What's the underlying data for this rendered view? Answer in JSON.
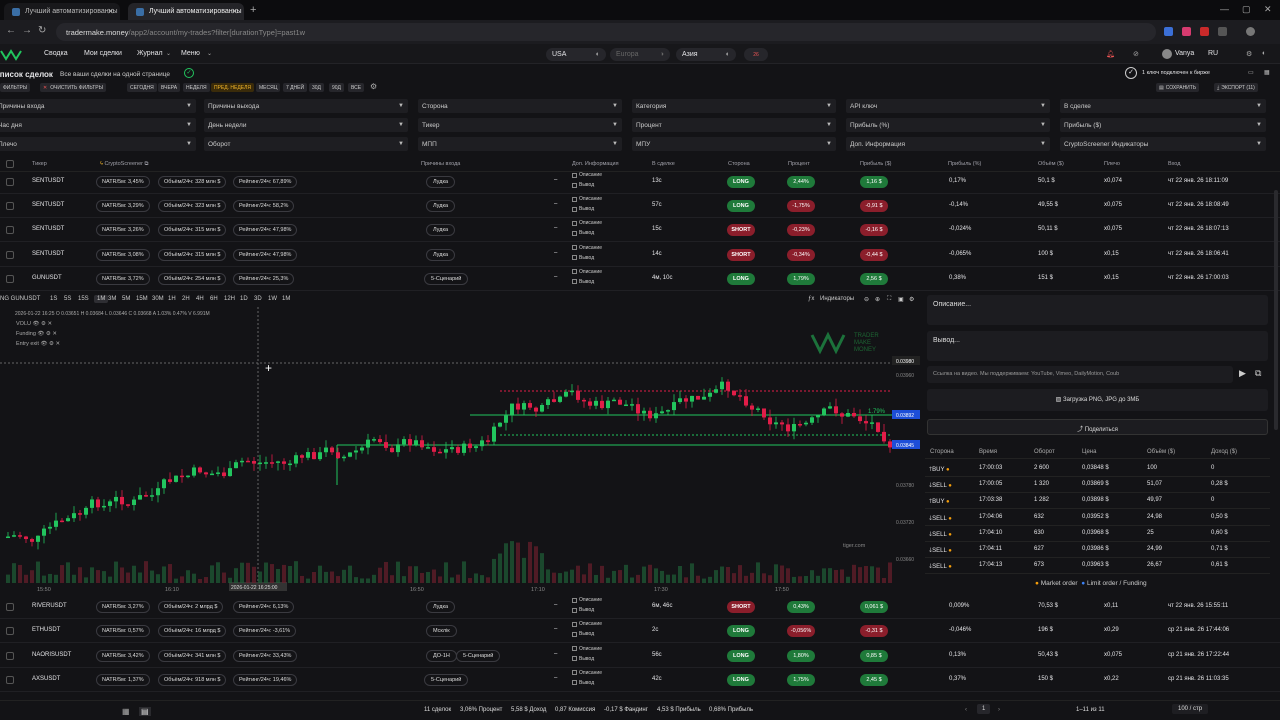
{
  "browser": {
    "tabs": [
      {
        "title": "Лучший автоматизированны"
      },
      {
        "title": "Лучший автоматизированны"
      }
    ],
    "url_host": "tradermake.money",
    "url_path": "/app2/account/my-trades?filter[durationType]=past1w"
  },
  "topnav": {
    "items": [
      "Сводка",
      "Мои сделки",
      "Журнал",
      "Меню"
    ],
    "markets": [
      "USA",
      "Europa",
      "Азия"
    ],
    "badge": "26",
    "user": "Vanya",
    "lang": "RU"
  },
  "page": {
    "title": "Список сделок",
    "subtitle": "Все ваши сделки на одной странице",
    "api_status": "1 ключ подключен к бирже",
    "save_label": "СОХРАНИТЬ",
    "export_label": "ЭКСПОРТ (11)"
  },
  "filters": {
    "buttons": [
      "ФИЛЬТРЫ",
      "ОЧИСТИТЬ ФИЛЬТРЫ"
    ],
    "periods": [
      "СЕГОДНЯ",
      "ВЧЕРА",
      "НЕДЕЛЯ",
      "ПРЕД. НЕДЕЛЯ",
      "МЕСЯЦ",
      "7 ДНЕЙ",
      "30Д",
      "90Д",
      "ВСЕ"
    ],
    "active_period": "ПРЕД. НЕДЕЛЯ"
  },
  "dropdowns": [
    [
      "Причины входа",
      "Причины выхода",
      "Сторона",
      "Категория",
      "API ключ",
      "В сделке"
    ],
    [
      "Час дня",
      "День недели",
      "Тикер",
      "Процент",
      "Прибыль (%)",
      "Прибыль ($)"
    ],
    [
      "Плечо",
      "Оборот",
      "МПП",
      "МПУ",
      "Доп. Информация",
      "CryptoScreener Индикаторы"
    ]
  ],
  "columns": [
    "Тикер",
    "CryptoScreener",
    "Причины входа",
    "Доп. Информация",
    "В сделке",
    "Сторона",
    "Процент",
    "Прибыль ($)",
    "Прибыль (%)",
    "Объём ($)",
    "Плечо",
    "Вход"
  ],
  "desc_labels": {
    "desc": "Описание",
    "exit": "Вывод"
  },
  "trades_top": [
    {
      "ticker": "SENTUSDT",
      "natr": "NATR/5м: 3,45%",
      "vol": "Объём/24ч: 328 млн $",
      "rank": "Рейтинг/24ч: 67,89%",
      "reason": "Лудка",
      "dash": "–",
      "dur": "13с",
      "side": "LONG",
      "pct": "2,44%",
      "profit": "1,16 $",
      "profit_pct": "0,17%",
      "volume": "50,1 $",
      "lev": "x0,074",
      "entry": "чт 22 янв. 26 18:11:09"
    },
    {
      "ticker": "SENTUSDT",
      "natr": "NATR/5м: 3,29%",
      "vol": "Объём/24ч: 323 млн $",
      "rank": "Рейтинг/24ч: 58,2%",
      "reason": "Лудка",
      "dash": "–",
      "dur": "57с",
      "side": "LONG",
      "pct": "-1,75%",
      "profit": "-0,91 $",
      "profit_pct": "-0,14%",
      "volume": "49,55 $",
      "lev": "x0,075",
      "entry": "чт 22 янв. 26 18:08:49"
    },
    {
      "ticker": "SENTUSDT",
      "natr": "NATR/5м: 3,26%",
      "vol": "Объём/24ч: 315 млн $",
      "rank": "Рейтинг/24ч: 47,98%",
      "reason": "Лудка",
      "dash": "–",
      "dur": "15с",
      "side": "SHORT",
      "pct": "-0,23%",
      "profit": "-0,16 $",
      "profit_pct": "-0,024%",
      "volume": "50,11 $",
      "lev": "x0,075",
      "entry": "чт 22 янв. 26 18:07:13"
    },
    {
      "ticker": "SENTUSDT",
      "natr": "NATR/5м: 3,08%",
      "vol": "Объём/24ч: 315 млн $",
      "rank": "Рейтинг/24ч: 47,98%",
      "reason": "Лудка",
      "dash": "–",
      "dur": "14с",
      "side": "SHORT",
      "pct": "-0,34%",
      "profit": "-0,44 $",
      "profit_pct": "-0,065%",
      "volume": "100 $",
      "lev": "x0,15",
      "entry": "чт 22 янв. 26 18:06:41"
    },
    {
      "ticker": "GUNUSDT",
      "natr": "NATR/5м: 3,72%",
      "vol": "Объём/24ч: 254 млн $",
      "rank": "Рейтинг/24ч: 25,3%",
      "reason": "5-Сценарий",
      "dash": "–",
      "dur": "4м, 10с",
      "side": "LONG",
      "pct": "1,79%",
      "profit": "2,56 $",
      "profit_pct": "0,38%",
      "volume": "151 $",
      "lev": "x0,15",
      "entry": "чт 22 янв. 26 17:00:03"
    }
  ],
  "trades_bottom": [
    {
      "ticker": "RIVERUSDT",
      "natr": "NATR/5м: 3,27%",
      "vol": "Объём/24ч: 2 млрд $",
      "rank": "Рейтинг/24ч: 6,13%",
      "reason": "Лудка",
      "reason2": "",
      "dash": "–",
      "dur": "6м, 46с",
      "side": "SHORT",
      "pct": "0,43%",
      "profit": "0,061 $",
      "profit_pct": "0,009%",
      "volume": "70,53 $",
      "lev": "x0,11",
      "entry": "чт 22 янв. 26 15:55:11"
    },
    {
      "ticker": "ETHUSDT",
      "natr": "NATR/5м: 0,57%",
      "vol": "Объём/24ч: 16 млрд $",
      "rank": "Рейтинг/24ч: -3,61%",
      "reason": "Мсклік",
      "reason2": "",
      "dash": "–",
      "dur": "2с",
      "side": "LONG",
      "pct": "-0,056%",
      "profit": "-0,31 $",
      "profit_pct": "-0,046%",
      "volume": "196 $",
      "lev": "x0,29",
      "entry": "ср 21 янв. 26 17:44:06"
    },
    {
      "ticker": "NAORISUSDT",
      "natr": "NATR/5м: 3,42%",
      "vol": "Объём/24ч: 341 млн $",
      "rank": "Рейтинг/24ч: 33,43%",
      "reason": "ДО-1Н",
      "reason2": "5-Сценарий",
      "dash": "–",
      "dur": "56с",
      "side": "LONG",
      "pct": "1,80%",
      "profit": "0,85 $",
      "profit_pct": "0,13%",
      "volume": "50,43 $",
      "lev": "x0,075",
      "entry": "ср 21 янв. 26 17:22:44"
    },
    {
      "ticker": "AXSUSDT",
      "natr": "NATR/5м: 1,37%",
      "vol": "Объём/24ч: 918 млн $",
      "rank": "Рейтинг/24ч: 19,46%",
      "reason": "5-Сценарий",
      "reason2": "",
      "dash": "–",
      "dur": "42с",
      "side": "LONG",
      "pct": "1,75%",
      "profit": "2,45 $",
      "profit_pct": "0,37%",
      "volume": "150 $",
      "lev": "x0,22",
      "entry": "ср 21 янв. 26 11:03:35"
    }
  ],
  "chart": {
    "symbol": "NG GUNUSDT",
    "timeframes": [
      "1S",
      "5S",
      "15S",
      "1M",
      "3M",
      "5M",
      "15M",
      "30M",
      "1H",
      "2H",
      "4H",
      "6H",
      "12H",
      "1D",
      "3D",
      "1W",
      "1M"
    ],
    "active_tf": "1M",
    "indicators_label": "Индикаторы",
    "ohlc": "2026-01-22 16:25  O 0.03651  H 0.03684  L 0.03646  C 0.03668  A 1.03%  0.47%  V 6.991M",
    "legend": [
      "VOLU",
      "Funding",
      "Entry exit"
    ],
    "watermark": [
      "TRADER",
      "MAKE",
      "MONEY"
    ],
    "price_labels": [
      "0.03980",
      "0.03960",
      "0.03892",
      "0.03845",
      "0.03780",
      "0.03720",
      "0.03660"
    ],
    "time_labels": [
      "15:50",
      "16:10",
      "16:50",
      "17:10",
      "17:30",
      "17:50"
    ],
    "crosshair_time": "2026-01-22 16:25:00",
    "pct_label": "1.79%",
    "tiger": "tiger.com"
  },
  "chart_data": {
    "type": "table",
    "note_rows": []
  },
  "panel": {
    "desc_ph": "Описание...",
    "exit_ph": "Вывод...",
    "video_ph": "Ссылка на видео. Мы поддерживаем: YouTube, Vimeo, DailyMotion, Coub",
    "upload": "Загрузка PNG, JPG до 3МБ",
    "share": "Поделиться",
    "cols": [
      "Сторона",
      "Время",
      "Оборот",
      "Цена",
      "Объём ($)",
      "Доход ($)"
    ],
    "rows": [
      {
        "side": "BUY",
        "time": "17:00:03",
        "turnover": "2 600",
        "price": "0,03848 $",
        "vol": "100",
        "pnl": "0"
      },
      {
        "side": "SELL",
        "time": "17:00:05",
        "turnover": "1 320",
        "price": "0,03869 $",
        "vol": "51,07",
        "pnl": "0,28 $"
      },
      {
        "side": "BUY",
        "time": "17:03:38",
        "turnover": "1 282",
        "price": "0,03898 $",
        "vol": "49,97",
        "pnl": "0"
      },
      {
        "side": "SELL",
        "time": "17:04:06",
        "turnover": "632",
        "price": "0,03952 $",
        "vol": "24,98",
        "pnl": "0,50 $"
      },
      {
        "side": "SELL",
        "time": "17:04:10",
        "turnover": "630",
        "price": "0,03968 $",
        "vol": "25",
        "pnl": "0,60 $"
      },
      {
        "side": "SELL",
        "time": "17:04:11",
        "turnover": "627",
        "price": "0,03986 $",
        "vol": "24,99",
        "pnl": "0,71 $"
      },
      {
        "side": "SELL",
        "time": "17:04:13",
        "turnover": "673",
        "price": "0,03963 $",
        "vol": "26,67",
        "pnl": "0,61 $"
      }
    ],
    "legend_market": "Market order",
    "legend_limit": "Limit order / Funding"
  },
  "summary": {
    "items": [
      "11 сделок",
      "3,06% Процент",
      "5,58 $ Доход",
      "0,87 Комиссия",
      "-0,17 $ Фандинг",
      "4,53 $ Прибыль",
      "0,68% Прибыль"
    ],
    "page": "1",
    "range": "1–11 из 11",
    "per_page": "100 / стр"
  }
}
